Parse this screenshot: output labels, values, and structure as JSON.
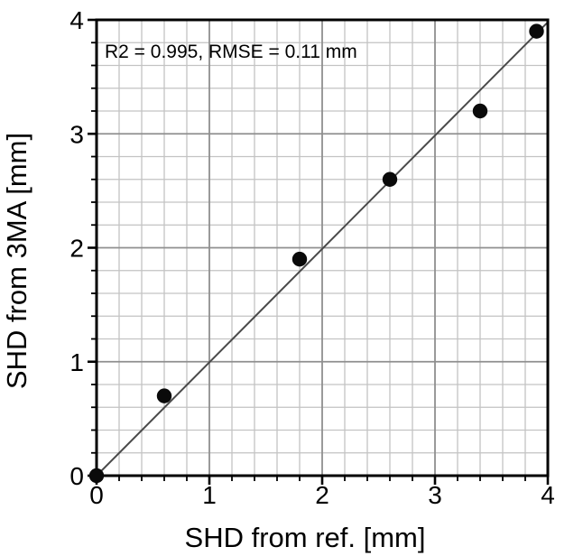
{
  "chart_data": {
    "type": "scatter",
    "title": "",
    "xlabel": "SHD from ref. [mm]",
    "ylabel": "SHD from 3MA [mm]",
    "annotation": "R2 = 0.995, RMSE = 0.11 mm",
    "stats": {
      "r2": 0.995,
      "rmse_mm": 0.11
    },
    "xlim": [
      0,
      4
    ],
    "ylim": [
      0,
      4
    ],
    "x_ticks": [
      0,
      1,
      2,
      3,
      4
    ],
    "y_ticks": [
      0,
      1,
      2,
      3,
      4
    ],
    "minor_tick_step": 0.2,
    "major_tick_step": 1,
    "grid": "minor+major",
    "legend": "none",
    "points": [
      {
        "x": 0.0,
        "y": 0.0
      },
      {
        "x": 0.6,
        "y": 0.7
      },
      {
        "x": 1.8,
        "y": 1.9
      },
      {
        "x": 2.6,
        "y": 2.6
      },
      {
        "x": 3.4,
        "y": 3.2
      },
      {
        "x": 3.9,
        "y": 3.9
      }
    ],
    "fit_line": {
      "slope": 0.995,
      "intercept": 0.0,
      "x_range": [
        0,
        4
      ]
    },
    "colors": {
      "point": "#0a0a0a",
      "fit_line": "#4a4a4a",
      "grid_minor": "#c3c3c3",
      "grid_major": "#8f8f8f",
      "frame": "#000000",
      "tick": "#000000",
      "text": "#000000",
      "background": "#ffffff"
    }
  }
}
